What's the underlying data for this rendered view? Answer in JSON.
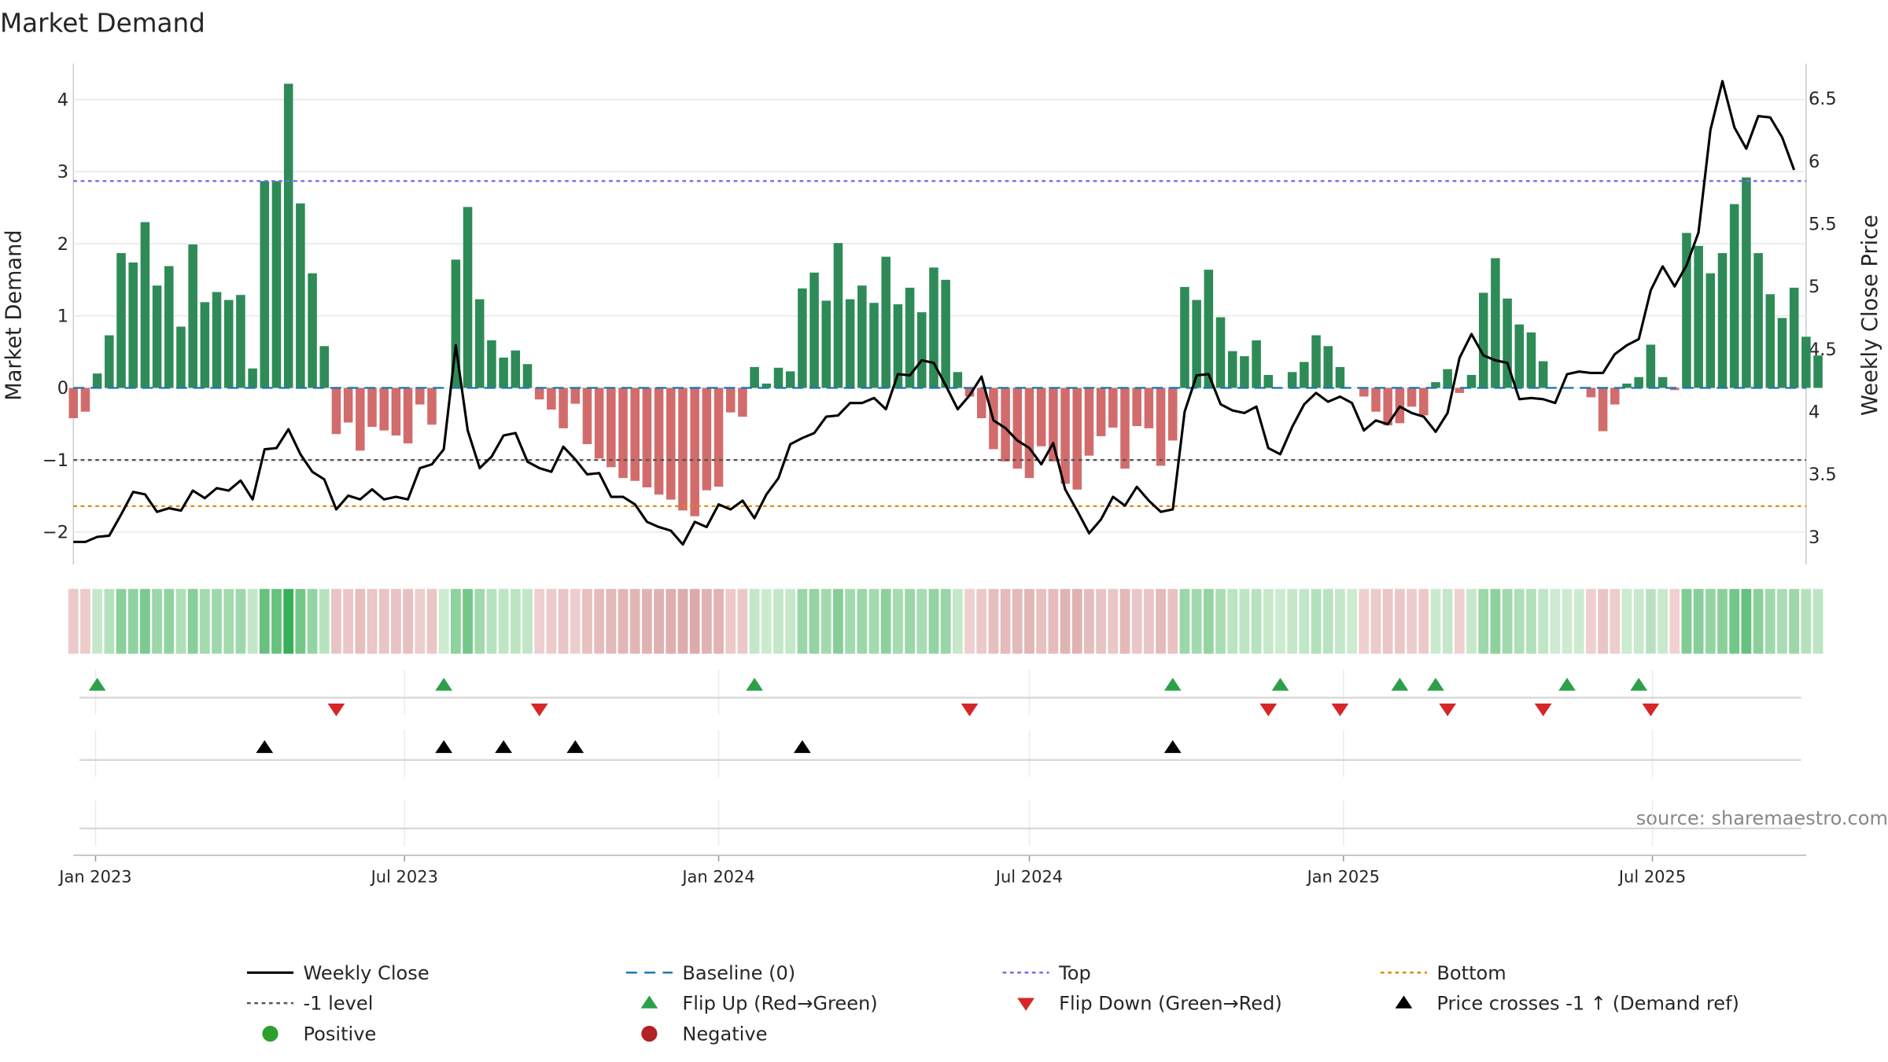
{
  "colors": {
    "positive": "#2e8b57",
    "negative": "#cd5c5c",
    "price": "#000000",
    "baseline": "#1f77b4",
    "top": "#7b68ee",
    "bottom": "#e08a0b",
    "neg1": "#555555",
    "flip_up": "#2ca048",
    "flip_down": "#d62728",
    "cross": "#000000",
    "positive_dot": "#2ca02c",
    "negative_dot": "#b22222"
  },
  "chart_data": {
    "type": "bar",
    "title": "Market Demand",
    "ylabel": "Market Demand",
    "y2label": "Weekly Close Price",
    "ylim": [
      -2.45,
      4.5
    ],
    "y2lim": [
      2.78,
      6.78
    ],
    "yticks": [
      4,
      3,
      2,
      1,
      0,
      -1,
      -2
    ],
    "ytick_labels": [
      "4",
      "3",
      "2",
      "1",
      "0",
      "−1",
      "−2"
    ],
    "y2ticks": [
      6.5,
      6,
      5.5,
      5,
      4.5,
      4,
      3.5,
      3
    ],
    "y2tick_labels": [
      "6.5",
      "6",
      "5.5",
      "5",
      "4.5",
      "4",
      "3.5",
      "3"
    ],
    "x_start": "2022-12-19",
    "x_end": "2025-09-29",
    "xticks": [
      "2023-01-01",
      "2023-07-01",
      "2024-01-01",
      "2024-07-01",
      "2025-01-01",
      "2025-07-01"
    ],
    "xtick_labels": [
      "Jan 2023",
      "Jul 2023",
      "Jan 2024",
      "Jul 2024",
      "Jan 2025",
      "Jul 2025"
    ],
    "first_week": "2022-12-19",
    "levels": {
      "baseline": 0,
      "top": 2.87,
      "bottom": -1.64,
      "neg1": -1
    },
    "demand": [
      -0.42,
      -0.33,
      0.2,
      0.73,
      1.87,
      1.74,
      2.3,
      1.42,
      1.69,
      0.85,
      1.99,
      1.19,
      1.33,
      1.22,
      1.29,
      0.27,
      2.87,
      2.87,
      4.22,
      2.56,
      1.59,
      0.58,
      -0.64,
      -0.48,
      -0.87,
      -0.54,
      -0.59,
      -0.66,
      -0.77,
      -0.23,
      -0.51,
      0,
      1.78,
      2.51,
      1.23,
      0.66,
      0.42,
      0.52,
      0.33,
      -0.16,
      -0.3,
      -0.56,
      -0.22,
      -0.78,
      -0.98,
      -1.1,
      -1.25,
      -1.29,
      -1.38,
      -1.48,
      -1.55,
      -1.7,
      -1.78,
      -1.42,
      -1.37,
      -0.34,
      -0.4,
      0.29,
      0.06,
      0.28,
      0.23,
      1.38,
      1.6,
      1.21,
      2.01,
      1.23,
      1.42,
      1.18,
      1.82,
      1.16,
      1.39,
      1.05,
      1.67,
      1.5,
      0.22,
      -0.12,
      -0.42,
      -0.85,
      -1.02,
      -1.12,
      -1.25,
      -0.81,
      -1.02,
      -1.33,
      -1.41,
      -0.94,
      -0.67,
      -0.55,
      -1.12,
      -0.53,
      -0.56,
      -1.08,
      -0.73,
      1.4,
      1.22,
      1.64,
      0.98,
      0.51,
      0.44,
      0.66,
      0.18,
      0,
      0.22,
      0.36,
      0.73,
      0.58,
      0.29,
      0,
      -0.12,
      -0.33,
      -0.52,
      -0.49,
      -0.26,
      -0.38,
      0.08,
      0.26,
      -0.07,
      0.18,
      1.32,
      1.8,
      1.24,
      0.88,
      0.77,
      0.37,
      0,
      0,
      0,
      -0.13,
      -0.6,
      -0.23,
      0.06,
      0.15,
      0.6,
      0.15,
      -0.03,
      2.15,
      1.97,
      1.59,
      1.87,
      2.55,
      2.92,
      1.87,
      1.3,
      0.97,
      1.39,
      0.71,
      0.45
    ],
    "price": [
      2.96,
      2.96,
      3,
      3.01,
      3.18,
      3.36,
      3.34,
      3.2,
      3.23,
      3.21,
      3.37,
      3.31,
      3.39,
      3.37,
      3.45,
      3.3,
      3.7,
      3.71,
      3.86,
      3.66,
      3.52,
      3.46,
      3.22,
      3.33,
      3.3,
      3.38,
      3.3,
      3.32,
      3.3,
      3.55,
      3.58,
      3.7,
      4.53,
      3.85,
      3.55,
      3.64,
      3.81,
      3.83,
      3.6,
      3.55,
      3.52,
      3.72,
      3.62,
      3.5,
      3.51,
      3.32,
      3.32,
      3.26,
      3.12,
      3.08,
      3.05,
      2.94,
      3.12,
      3.08,
      3.26,
      3.22,
      3.29,
      3.15,
      3.34,
      3.47,
      3.74,
      3.79,
      3.83,
      3.96,
      3.97,
      4.07,
      4.07,
      4.11,
      4.02,
      4.3,
      4.29,
      4.41,
      4.39,
      4.21,
      4.02,
      4.13,
      4.28,
      3.93,
      3.87,
      3.77,
      3.71,
      3.58,
      3.75,
      3.38,
      3.21,
      3.03,
      3.14,
      3.32,
      3.25,
      3.4,
      3.29,
      3.2,
      3.22,
      4,
      4.29,
      4.3,
      4.06,
      4.01,
      3.99,
      4.04,
      3.71,
      3.66,
      3.88,
      4.06,
      4.15,
      4.08,
      4.12,
      4.07,
      3.85,
      3.93,
      3.9,
      4.04,
      3.99,
      3.96,
      3.84,
      3.99,
      4.43,
      4.62,
      4.45,
      4.41,
      4.39,
      4.1,
      4.11,
      4.1,
      4.07,
      4.3,
      4.32,
      4.31,
      4.31,
      4.46,
      4.53,
      4.58,
      4.97,
      5.16,
      5,
      5.17,
      5.43,
      6.25,
      6.64,
      6.27,
      6.1,
      6.36,
      6.35,
      6.19,
      5.93
    ],
    "flip_up_weeks": [
      2,
      31,
      57,
      92,
      101,
      111,
      114,
      125,
      131
    ],
    "flip_down_weeks": [
      22,
      39,
      75,
      100,
      106,
      115,
      123,
      132
    ],
    "cross_weeks": [
      16,
      31,
      36,
      42,
      61,
      92
    ],
    "watermark": "source: sharemaestro.com",
    "legend": [
      {
        "label": "Weekly Close",
        "kind": "line",
        "color": "#000000"
      },
      {
        "label": "Baseline (0)",
        "kind": "dash",
        "color": "#1f77b4"
      },
      {
        "label": "Top",
        "kind": "dot",
        "color": "#7b68ee"
      },
      {
        "label": "Bottom",
        "kind": "dot",
        "color": "#e08a0b"
      },
      {
        "label": "-1 level",
        "kind": "dot",
        "color": "#555555"
      },
      {
        "label": "Flip Up (Red→Green)",
        "kind": "tri-up",
        "color": "#2ca048"
      },
      {
        "label": "Flip Down (Green→Red)",
        "kind": "tri-down",
        "color": "#d62728"
      },
      {
        "label": "Price crosses -1 ↑ (Demand ref)",
        "kind": "tri-up",
        "color": "#000000"
      },
      {
        "label": "Positive",
        "kind": "circle",
        "color": "#2ca02c"
      },
      {
        "label": "Negative",
        "kind": "circle",
        "color": "#b22222"
      }
    ]
  }
}
